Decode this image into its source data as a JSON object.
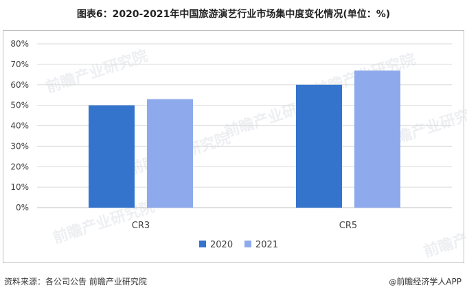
{
  "title": "图表6：2020-2021年中国旅游演艺行业市场集中度变化情况(单位：%)",
  "watermark": "前瞻产业研究院",
  "footer": {
    "source": "资料来源：各公司公告 前瞻产业研究院",
    "brand_mark": "@",
    "brand": "前瞻经济学人APP"
  },
  "colors": {
    "2020": "#3474cc",
    "2021": "#8eaaec",
    "grid": "#d9d9d9",
    "axis": "#bfbfbf"
  },
  "chart_data": {
    "type": "bar",
    "categories": [
      "CR3",
      "CR5"
    ],
    "series": [
      {
        "name": "2020",
        "values": [
          50,
          60
        ]
      },
      {
        "name": "2021",
        "values": [
          53,
          67
        ]
      }
    ],
    "ylim": [
      0,
      80
    ],
    "yticks": [
      "0%",
      "10%",
      "20%",
      "30%",
      "40%",
      "50%",
      "60%",
      "70%",
      "80%"
    ],
    "grid": true,
    "legend_position": "bottom"
  }
}
